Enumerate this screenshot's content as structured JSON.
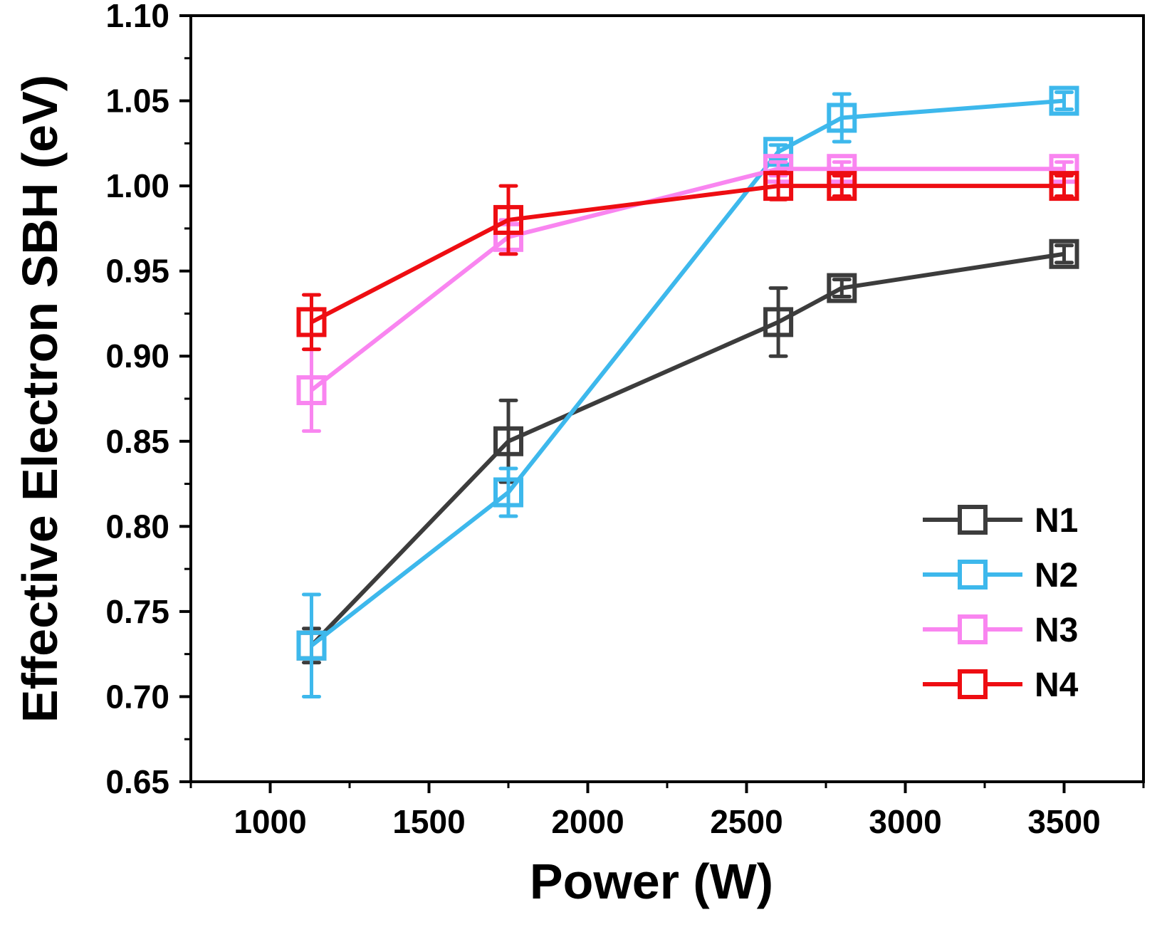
{
  "chart_data": {
    "type": "line",
    "title": "",
    "xlabel": "Power (W)",
    "ylabel": "Effective Electron SBH (eV)",
    "xlim": [
      750,
      3750
    ],
    "ylim": [
      0.65,
      1.1
    ],
    "xticks": [
      1000,
      1500,
      2000,
      2500,
      3000,
      3500
    ],
    "xtick_labels": [
      "1000",
      "1500",
      "2000",
      "2500",
      "3000",
      "3500"
    ],
    "yticks": [
      0.65,
      0.7,
      0.75,
      0.8,
      0.85,
      0.9,
      0.95,
      1.0,
      1.05,
      1.1
    ],
    "ytick_labels": [
      "0.65",
      "0.70",
      "0.75",
      "0.80",
      "0.85",
      "0.90",
      "0.95",
      "1.00",
      "1.05",
      "1.10"
    ],
    "legend_position": "bottom-right",
    "grid": false,
    "series": [
      {
        "name": "N1",
        "color": "#3c3c3c",
        "x": [
          1130,
          1750,
          2600,
          2800,
          3500
        ],
        "y": [
          0.73,
          0.85,
          0.92,
          0.94,
          0.96
        ],
        "err": [
          0.01,
          0.024,
          0.02,
          0.005,
          0.005
        ]
      },
      {
        "name": "N2",
        "color": "#3db8ec",
        "x": [
          1130,
          1750,
          2600,
          2800,
          3500
        ],
        "y": [
          0.73,
          0.82,
          1.02,
          1.04,
          1.05
        ],
        "err": [
          0.03,
          0.014,
          0.004,
          0.014,
          0.005
        ]
      },
      {
        "name": "N3",
        "color": "#f985f0",
        "x": [
          1130,
          1750,
          2600,
          2800,
          3500
        ],
        "y": [
          0.88,
          0.97,
          1.01,
          1.01,
          1.01
        ],
        "err": [
          0.024,
          0.01,
          0.004,
          0.004,
          0.004
        ]
      },
      {
        "name": "N4",
        "color": "#ee0d12",
        "x": [
          1130,
          1750,
          2600,
          2800,
          3500
        ],
        "y": [
          0.92,
          0.98,
          1.0,
          1.0,
          1.0
        ],
        "err": [
          0.016,
          0.02,
          0.008,
          0.006,
          0.006
        ]
      }
    ]
  }
}
